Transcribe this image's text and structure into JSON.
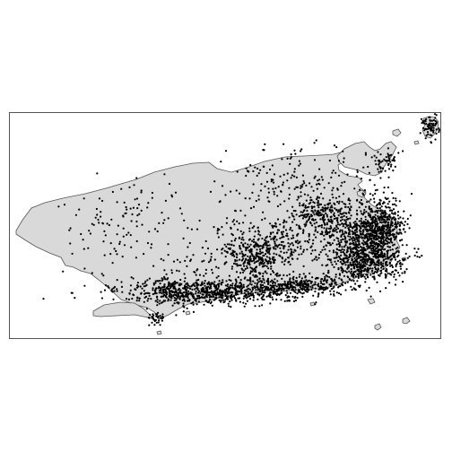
{
  "map": {
    "region_name": "",
    "land_fill": "#d9d9d9",
    "land_stroke": "#555555",
    "point_color": "#000000",
    "frame_stroke": "#555555",
    "background": "#ffffff"
  }
}
